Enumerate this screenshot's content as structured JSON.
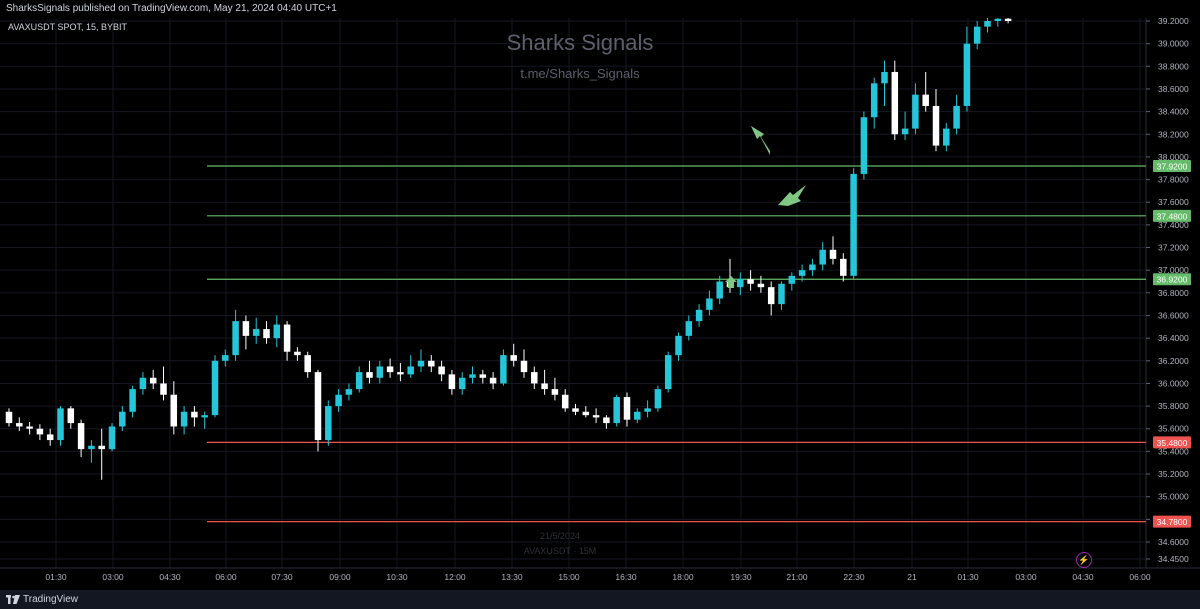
{
  "header": {
    "published_text": "SharksSignals published on TradingView.com, May 21, 2024 04:40 UTC+1"
  },
  "symbol_line": "AVAXUSDT SPOT, 15, BYBIT",
  "watermark": {
    "title": "Sharks Signals",
    "link": "t.me/Sharks_Signals",
    "date": "21/5/2024",
    "symbol": "AVAXUSDT · 15M"
  },
  "footer": {
    "brand": "TradingView"
  },
  "icons": {
    "lightning": "lightning-icon",
    "logo": "tradingview-logo-icon"
  },
  "colors": {
    "background": "#000000",
    "bull": "#26c6da",
    "bear": "#ffffff",
    "support": "#66bb6a",
    "resistance": "#ef5350",
    "grid": "#151722",
    "arrow": "#81c784"
  },
  "chart_data": {
    "type": "candlestick",
    "title": "AVAXUSDT SPOT, 15, BYBIT",
    "ylim": [
      34.4,
      39.22
    ],
    "y_ticks": [
      "39.2000",
      "39.0000",
      "38.8000",
      "38.6000",
      "38.4000",
      "38.2000",
      "38.0000",
      "37.8000",
      "37.6000",
      "37.4000",
      "37.2000",
      "37.0000",
      "36.8000",
      "36.6000",
      "36.4000",
      "36.2000",
      "36.0000",
      "35.8000",
      "35.6000",
      "35.4000",
      "35.2000",
      "35.0000",
      "34.8000",
      "34.6000",
      "34.4500"
    ],
    "x_ticks": [
      "01:30",
      "03:00",
      "04:30",
      "06:00",
      "07:30",
      "09:00",
      "10:30",
      "12:00",
      "13:30",
      "15:00",
      "16:30",
      "18:00",
      "19:30",
      "21:00",
      "22:30",
      "21",
      "01:30",
      "03:00",
      "04:30",
      "06:00"
    ],
    "horizontal_levels": [
      {
        "price": 37.92,
        "label": "37.9200",
        "kind": "support"
      },
      {
        "price": 37.48,
        "label": "37.4800",
        "kind": "support"
      },
      {
        "price": 36.92,
        "label": "36.9200",
        "kind": "support"
      },
      {
        "price": 35.48,
        "label": "35.4800",
        "kind": "resistance"
      },
      {
        "price": 34.78,
        "label": "34.7800",
        "kind": "resistance"
      }
    ],
    "candles": [
      [
        35.75,
        35.78,
        35.62,
        35.65
      ],
      [
        35.65,
        35.7,
        35.58,
        35.62
      ],
      [
        35.62,
        35.66,
        35.55,
        35.6
      ],
      [
        35.6,
        35.64,
        35.5,
        35.55
      ],
      [
        35.55,
        35.6,
        35.45,
        35.5
      ],
      [
        35.5,
        35.8,
        35.45,
        35.78
      ],
      [
        35.78,
        35.8,
        35.6,
        35.65
      ],
      [
        35.65,
        35.68,
        35.35,
        35.42
      ],
      [
        35.42,
        35.5,
        35.3,
        35.45
      ],
      [
        35.45,
        35.6,
        35.15,
        35.42
      ],
      [
        35.42,
        35.65,
        35.4,
        35.62
      ],
      [
        35.62,
        35.8,
        35.58,
        35.75
      ],
      [
        35.75,
        35.98,
        35.7,
        35.95
      ],
      [
        35.95,
        36.1,
        35.9,
        36.05
      ],
      [
        36.05,
        36.12,
        35.95,
        36.0
      ],
      [
        36.0,
        36.15,
        35.85,
        35.9
      ],
      [
        35.9,
        36.02,
        35.55,
        35.62
      ],
      [
        35.62,
        35.8,
        35.55,
        35.75
      ],
      [
        35.75,
        35.8,
        35.62,
        35.7
      ],
      [
        35.7,
        35.75,
        35.6,
        35.72
      ],
      [
        35.72,
        36.25,
        35.7,
        36.2
      ],
      [
        36.2,
        36.3,
        36.15,
        36.25
      ],
      [
        36.25,
        36.65,
        36.2,
        36.55
      ],
      [
        36.55,
        36.6,
        36.3,
        36.42
      ],
      [
        36.42,
        36.58,
        36.35,
        36.48
      ],
      [
        36.48,
        36.55,
        36.35,
        36.4
      ],
      [
        36.4,
        36.6,
        36.32,
        36.52
      ],
      [
        36.52,
        36.55,
        36.2,
        36.28
      ],
      [
        36.28,
        36.32,
        36.2,
        36.25
      ],
      [
        36.25,
        36.28,
        36.05,
        36.1
      ],
      [
        36.1,
        36.12,
        35.4,
        35.5
      ],
      [
        35.5,
        35.85,
        35.45,
        35.8
      ],
      [
        35.8,
        35.95,
        35.75,
        35.9
      ],
      [
        35.9,
        36.0,
        35.85,
        35.95
      ],
      [
        35.95,
        36.15,
        35.92,
        36.1
      ],
      [
        36.1,
        36.2,
        36.0,
        36.05
      ],
      [
        36.05,
        36.2,
        36.0,
        36.15
      ],
      [
        36.15,
        36.22,
        36.05,
        36.1
      ],
      [
        36.1,
        36.18,
        36.02,
        36.08
      ],
      [
        36.08,
        36.25,
        36.05,
        36.15
      ],
      [
        36.15,
        36.3,
        36.1,
        36.2
      ],
      [
        36.2,
        36.25,
        36.1,
        36.15
      ],
      [
        36.15,
        36.2,
        36.02,
        36.08
      ],
      [
        36.08,
        36.12,
        35.9,
        35.95
      ],
      [
        35.95,
        36.1,
        35.9,
        36.05
      ],
      [
        36.05,
        36.15,
        36.0,
        36.08
      ],
      [
        36.08,
        36.12,
        36.0,
        36.05
      ],
      [
        36.05,
        36.1,
        35.95,
        36.0
      ],
      [
        36.0,
        36.3,
        35.98,
        36.25
      ],
      [
        36.25,
        36.35,
        36.15,
        36.2
      ],
      [
        36.2,
        36.3,
        36.05,
        36.1
      ],
      [
        36.1,
        36.15,
        35.95,
        36.0
      ],
      [
        36.0,
        36.12,
        35.9,
        35.95
      ],
      [
        35.95,
        36.05,
        35.85,
        35.9
      ],
      [
        35.9,
        35.95,
        35.75,
        35.78
      ],
      [
        35.78,
        35.82,
        35.72,
        35.75
      ],
      [
        35.75,
        35.8,
        35.7,
        35.72
      ],
      [
        35.72,
        35.78,
        35.65,
        35.7
      ],
      [
        35.7,
        35.72,
        35.6,
        35.65
      ],
      [
        35.65,
        35.9,
        35.62,
        35.88
      ],
      [
        35.88,
        35.92,
        35.62,
        35.68
      ],
      [
        35.68,
        35.78,
        35.65,
        35.75
      ],
      [
        35.75,
        35.85,
        35.7,
        35.78
      ],
      [
        35.78,
        35.98,
        35.75,
        35.95
      ],
      [
        35.95,
        36.28,
        35.92,
        36.25
      ],
      [
        36.25,
        36.45,
        36.2,
        36.42
      ],
      [
        36.42,
        36.6,
        36.38,
        36.55
      ],
      [
        36.55,
        36.7,
        36.5,
        36.65
      ],
      [
        36.65,
        36.82,
        36.6,
        36.75
      ],
      [
        36.75,
        36.95,
        36.7,
        36.9
      ],
      [
        36.9,
        37.1,
        36.8,
        36.85
      ],
      [
        36.85,
        36.98,
        36.78,
        36.92
      ],
      [
        36.92,
        37.0,
        36.82,
        36.88
      ],
      [
        36.88,
        36.95,
        36.8,
        36.85
      ],
      [
        36.85,
        36.9,
        36.6,
        36.7
      ],
      [
        36.7,
        36.9,
        36.65,
        36.88
      ],
      [
        36.88,
        36.98,
        36.82,
        36.95
      ],
      [
        36.95,
        37.05,
        36.9,
        37.0
      ],
      [
        37.0,
        37.1,
        36.95,
        37.05
      ],
      [
        37.05,
        37.25,
        37.0,
        37.18
      ],
      [
        37.18,
        37.3,
        37.05,
        37.1
      ],
      [
        37.1,
        37.15,
        36.9,
        36.95
      ],
      [
        36.95,
        37.9,
        36.92,
        37.85
      ],
      [
        37.85,
        38.4,
        37.8,
        38.35
      ],
      [
        38.35,
        38.7,
        38.25,
        38.65
      ],
      [
        38.65,
        38.85,
        38.45,
        38.75
      ],
      [
        38.75,
        38.85,
        38.15,
        38.2
      ],
      [
        38.2,
        38.4,
        38.15,
        38.25
      ],
      [
        38.25,
        38.65,
        38.2,
        38.55
      ],
      [
        38.55,
        38.75,
        38.4,
        38.45
      ],
      [
        38.45,
        38.6,
        38.05,
        38.1
      ],
      [
        38.1,
        38.3,
        38.05,
        38.25
      ],
      [
        38.25,
        38.55,
        38.2,
        38.45
      ],
      [
        38.45,
        39.15,
        38.4,
        39.0
      ],
      [
        39.0,
        39.2,
        38.95,
        39.15
      ],
      [
        39.15,
        39.25,
        39.1,
        39.2
      ],
      [
        39.2,
        39.25,
        39.15,
        39.22
      ],
      [
        39.22,
        39.25,
        39.18,
        39.2
      ]
    ]
  }
}
